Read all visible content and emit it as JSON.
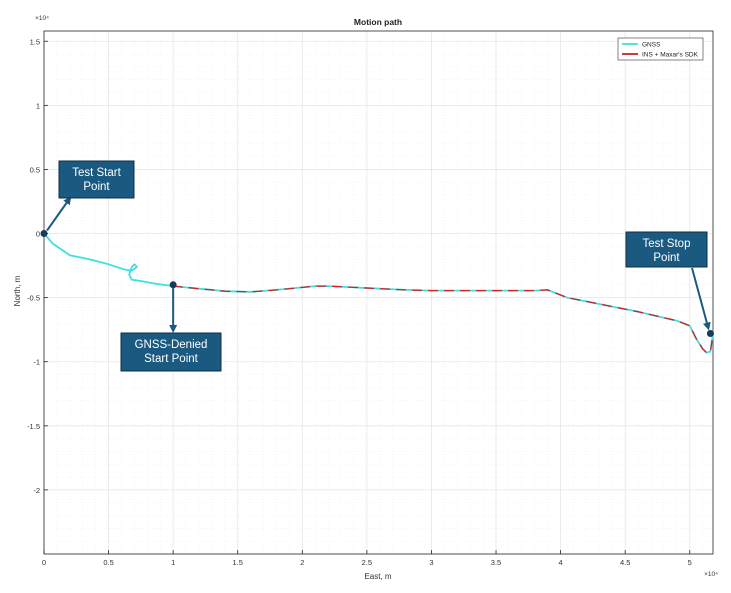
{
  "chart_data": {
    "type": "line",
    "title": "Motion path",
    "xlabel": "East, m",
    "ylabel": "North, m",
    "x_exponent": "×10⁴",
    "y_exponent": "×10⁴",
    "xlim": [
      0,
      5.18
    ],
    "ylim": [
      -2.5,
      1.58
    ],
    "x_ticks": [
      0,
      0.5,
      1,
      1.5,
      2,
      2.5,
      3,
      3.5,
      4,
      4.5,
      5
    ],
    "x_tick_labels": [
      "0",
      "0.5",
      "1",
      "1.5",
      "2",
      "2.5",
      "3",
      "3.5",
      "4",
      "4.5",
      "5"
    ],
    "y_ticks": [
      1.5,
      1,
      0.5,
      0,
      -0.5,
      -1,
      -1.5,
      -2
    ],
    "y_tick_labels": [
      "1.5",
      "1",
      "0.5",
      "0",
      "-0.5",
      "-1",
      "-1.5",
      "-2"
    ],
    "grid": true,
    "legend_position": "top-right",
    "series": [
      {
        "name": "GNSS",
        "color": "#3fe0e0",
        "x": [
          0,
          0.07,
          0.2,
          0.35,
          0.5,
          0.62,
          0.68,
          0.72,
          0.7,
          0.68,
          0.66,
          0.68,
          0.75,
          0.85,
          1.0,
          1.2,
          1.4,
          1.6,
          1.8,
          2.0,
          2.1,
          2.2,
          2.4,
          2.6,
          2.8,
          3.0,
          3.2,
          3.4,
          3.6,
          3.8,
          3.9,
          4.05,
          4.3,
          4.6,
          4.9,
          5.0,
          5.05,
          5.1,
          5.13,
          5.16,
          5.18
        ],
        "y": [
          0,
          -0.08,
          -0.17,
          -0.2,
          -0.24,
          -0.28,
          -0.29,
          -0.26,
          -0.24,
          -0.26,
          -0.32,
          -0.36,
          -0.37,
          -0.39,
          -0.41,
          -0.43,
          -0.45,
          -0.455,
          -0.44,
          -0.42,
          -0.41,
          -0.41,
          -0.42,
          -0.43,
          -0.44,
          -0.445,
          -0.445,
          -0.445,
          -0.445,
          -0.445,
          -0.44,
          -0.5,
          -0.55,
          -0.61,
          -0.68,
          -0.72,
          -0.82,
          -0.9,
          -0.93,
          -0.92,
          -0.78
        ]
      },
      {
        "name": "INS + Maxar's SDK",
        "color": "#cc2222",
        "x": [
          1.0,
          1.2,
          1.4,
          1.6,
          1.8,
          2.0,
          2.1,
          2.2,
          2.4,
          2.6,
          2.8,
          3.0,
          3.2,
          3.4,
          3.6,
          3.8,
          3.9,
          4.05,
          4.3,
          4.6,
          4.9,
          5.0,
          5.05,
          5.1,
          5.13,
          5.16,
          5.18
        ],
        "y": [
          -0.41,
          -0.43,
          -0.45,
          -0.455,
          -0.44,
          -0.42,
          -0.41,
          -0.41,
          -0.42,
          -0.43,
          -0.44,
          -0.445,
          -0.445,
          -0.445,
          -0.445,
          -0.445,
          -0.44,
          -0.5,
          -0.55,
          -0.61,
          -0.68,
          -0.72,
          -0.82,
          -0.9,
          -0.93,
          -0.92,
          -0.78
        ]
      }
    ],
    "annotations": [
      {
        "text": [
          "Test Start",
          "Point"
        ],
        "point": [
          0,
          0
        ]
      },
      {
        "text": [
          "GNSS-Denied",
          "Start Point"
        ],
        "point": [
          1.0,
          -0.4
        ]
      },
      {
        "text": [
          "Test Stop",
          "Point"
        ],
        "point": [
          5.16,
          -0.78
        ]
      }
    ],
    "colors": {
      "annotation_box": "#1b5a80",
      "annotation_text": "#ffffff",
      "marker": "#153a5a",
      "arrow": "#1b5a80",
      "grid": "#e6e6e6",
      "axes": "#262626"
    }
  }
}
